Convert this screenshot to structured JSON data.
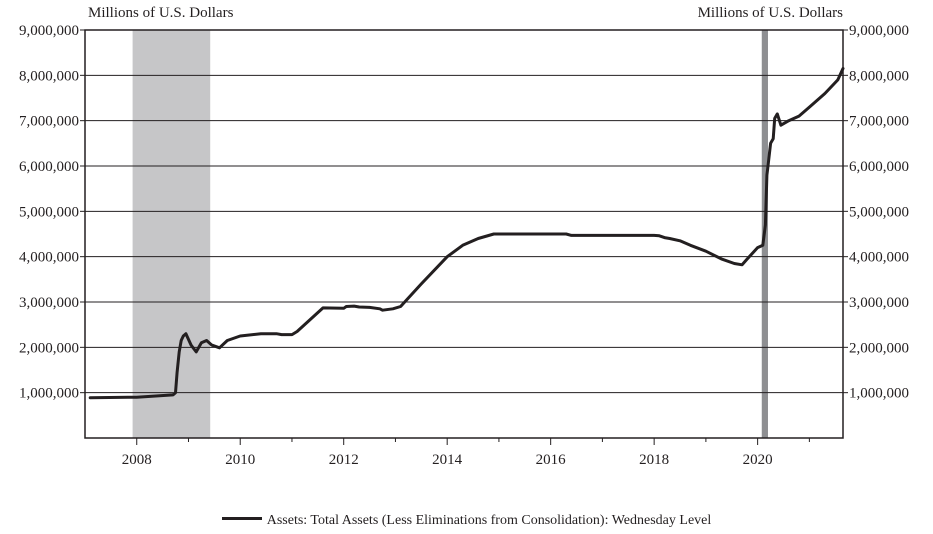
{
  "chart_data": {
    "type": "line",
    "y_unit_left": "Millions of U.S. Dollars",
    "y_unit_right": "Millions of U.S. Dollars",
    "ylim": [
      0,
      9000000
    ],
    "y_ticks": [
      1000000,
      2000000,
      3000000,
      4000000,
      5000000,
      6000000,
      7000000,
      8000000,
      9000000
    ],
    "y_tick_labels": [
      "1,000,000",
      "2,000,000",
      "3,000,000",
      "4,000,000",
      "5,000,000",
      "6,000,000",
      "7,000,000",
      "8,000,000",
      "9,000,000"
    ],
    "xlim": [
      2007.0,
      2021.65
    ],
    "x_ticks": [
      2008,
      2010,
      2012,
      2014,
      2016,
      2018,
      2020
    ],
    "x_tick_labels": [
      "2008",
      "2010",
      "2012",
      "2014",
      "2016",
      "2018",
      "2020"
    ],
    "grid": "horizontal",
    "recessions": [
      [
        2007.92,
        2009.42
      ],
      [
        2020.08,
        2020.2
      ]
    ],
    "legend_position": "bottom-center",
    "colors": {
      "line": "#231f20",
      "recession_1": "#c6c6c8",
      "recession_2": "#8e8f92",
      "grid": "#231f20"
    },
    "series": [
      {
        "name": "Assets: Total Assets (Less Eliminations from Consolidation): Wednesday Level",
        "x": [
          2007.1,
          2008.0,
          2008.7,
          2008.75,
          2008.78,
          2008.82,
          2008.86,
          2008.9,
          2008.95,
          2009.05,
          2009.15,
          2009.25,
          2009.35,
          2009.45,
          2009.6,
          2009.75,
          2010.0,
          2010.4,
          2010.7,
          2010.8,
          2011.0,
          2011.1,
          2011.6,
          2012.0,
          2012.05,
          2012.2,
          2012.3,
          2012.5,
          2012.7,
          2012.75,
          2012.95,
          2013.1,
          2013.5,
          2014.0,
          2014.3,
          2014.6,
          2014.9,
          2015.5,
          2016.0,
          2016.3,
          2016.4,
          2017.0,
          2017.5,
          2018.0,
          2018.1,
          2018.2,
          2018.3,
          2018.5,
          2018.7,
          2019.0,
          2019.3,
          2019.55,
          2019.7,
          2019.8,
          2020.0,
          2020.1,
          2020.15,
          2020.18,
          2020.2,
          2020.25,
          2020.3,
          2020.33,
          2020.38,
          2020.45,
          2020.6,
          2020.8,
          2021.0,
          2021.3,
          2021.55,
          2021.65
        ],
        "y": [
          890000,
          900000,
          950000,
          1000000,
          1450000,
          1900000,
          2150000,
          2250000,
          2300000,
          2050000,
          1900000,
          2100000,
          2150000,
          2050000,
          1990000,
          2150000,
          2250000,
          2300000,
          2300000,
          2280000,
          2280000,
          2350000,
          2870000,
          2860000,
          2900000,
          2910000,
          2890000,
          2880000,
          2850000,
          2820000,
          2850000,
          2900000,
          3400000,
          4000000,
          4250000,
          4400000,
          4500000,
          4500000,
          4500000,
          4500000,
          4470000,
          4470000,
          4470000,
          4470000,
          4460000,
          4420000,
          4400000,
          4350000,
          4250000,
          4120000,
          3950000,
          3850000,
          3820000,
          3950000,
          4200000,
          4250000,
          4700000,
          5800000,
          6000000,
          6500000,
          6600000,
          7050000,
          7150000,
          6900000,
          7000000,
          7100000,
          7300000,
          7600000,
          7900000,
          8150000
        ]
      }
    ]
  }
}
